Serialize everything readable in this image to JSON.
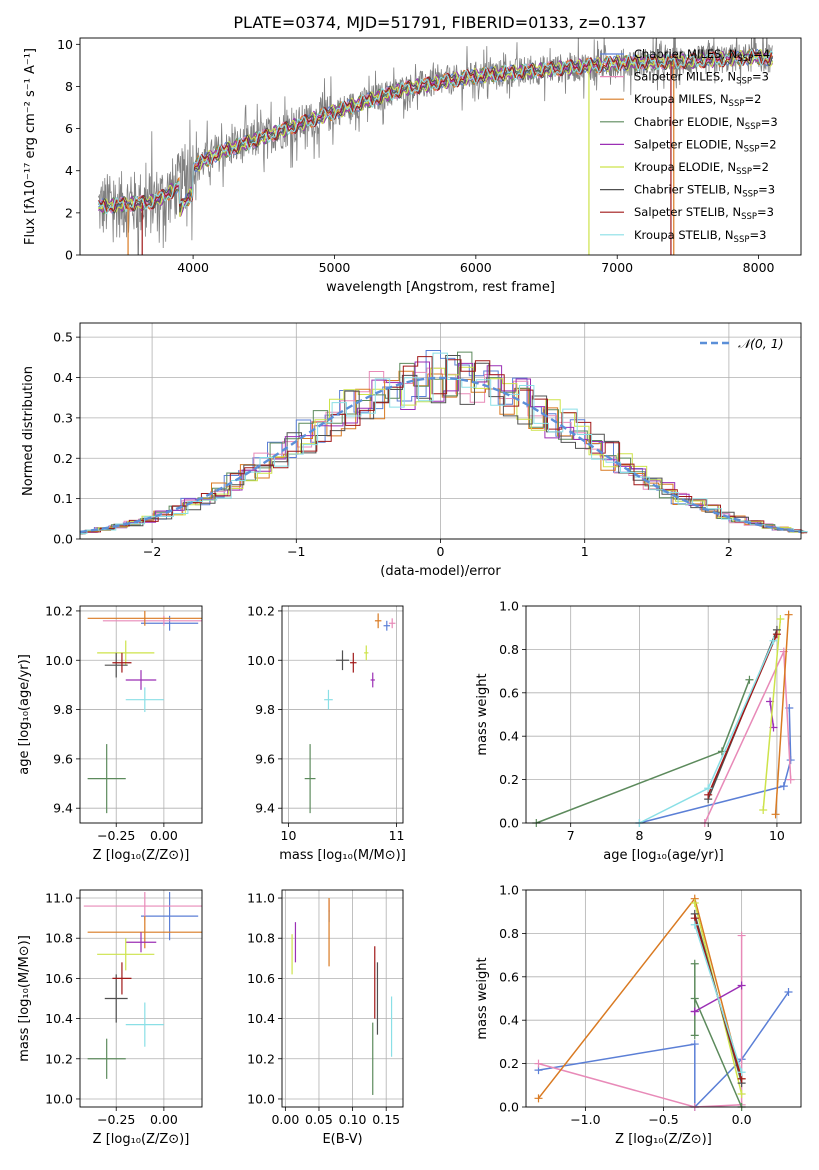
{
  "title": "PLATE=0374, MJD=51791, FIBERID=0133, z=0.137",
  "colors": {
    "Chabrier MILES": "#5b7fd6",
    "Salpeter MILES": "#e88ab8",
    "Kroupa MILES": "#d97a22",
    "Chabrier ELODIE": "#5c8a5c",
    "Salpeter ELODIE": "#9b2fb5",
    "Kroupa ELODIE": "#cde34a",
    "Chabrier STELIB": "#505050",
    "Salpeter STELIB": "#a01818",
    "Kroupa STELIB": "#8adfe6",
    "data": "#808080",
    "gaussian": "#5b8fd8"
  },
  "chart_data": [
    {
      "type": "line",
      "xlabel": "wavelength [Angstrom, rest frame]",
      "ylabel": "Flux [fλ10⁻¹⁷ erg cm⁻² s⁻¹ A⁻¹]",
      "xlim": [
        3200,
        8300
      ],
      "ylim": [
        0,
        10.3
      ],
      "xticks": [
        4000,
        5000,
        6000,
        7000,
        8000
      ],
      "yticks": [
        0,
        2,
        4,
        6,
        8,
        10
      ],
      "legend_position": "top-right",
      "legend": [
        {
          "name": "Chabrier MILES",
          "label": "Chabrier MILES, N",
          "sub": "SSP",
          "n": "=4"
        },
        {
          "name": "Salpeter MILES",
          "label": "Salpeter MILES, N",
          "sub": "SSP",
          "n": "=3"
        },
        {
          "name": "Kroupa MILES",
          "label": "Kroupa MILES, N",
          "sub": "SSP",
          "n": "=2"
        },
        {
          "name": "Chabrier ELODIE",
          "label": "Chabrier ELODIE, N",
          "sub": "SSP",
          "n": "=3"
        },
        {
          "name": "Salpeter ELODIE",
          "label": "Salpeter ELODIE, N",
          "sub": "SSP",
          "n": "=2"
        },
        {
          "name": "Kroupa ELODIE",
          "label": "Kroupa ELODIE, N",
          "sub": "SSP",
          "n": "=2"
        },
        {
          "name": "Chabrier STELIB",
          "label": "Chabrier STELIB, N",
          "sub": "SSP",
          "n": "=3"
        },
        {
          "name": "Salpeter STELIB",
          "label": "Salpeter STELIB, N",
          "sub": "SSP",
          "n": "=3"
        },
        {
          "name": "Kroupa STELIB",
          "label": "Kroupa STELIB, N",
          "sub": "SSP",
          "n": "=3"
        }
      ],
      "continuum": {
        "x": [
          3350,
          3500,
          3700,
          3800,
          3900,
          4000,
          4200,
          4500,
          5000,
          5500,
          6000,
          6500,
          7000,
          7500,
          8000,
          8100
        ],
        "y": [
          2.3,
          2.4,
          2.5,
          2.8,
          3.3,
          4.2,
          4.9,
          5.6,
          6.8,
          7.9,
          8.5,
          8.8,
          9.1,
          9.2,
          9.4,
          9.3
        ]
      },
      "data_range": [
        3330,
        8100
      ]
    },
    {
      "type": "histogram",
      "xlabel": "(data-model)/error",
      "ylabel": "Normed distribution",
      "xlim": [
        -2.5,
        2.5
      ],
      "ylim": [
        0,
        0.535
      ],
      "xticks": [
        -2,
        -1,
        0,
        1,
        2
      ],
      "yticks": [
        0.0,
        0.1,
        0.2,
        0.3,
        0.4,
        0.5
      ],
      "bin_width": 0.1,
      "legend": "𝒩(0, 1)",
      "legend_position": "top-right",
      "gaussian": {
        "mean": 0,
        "sigma": 1
      }
    },
    {
      "type": "scatter",
      "xlabel": "Z [log₁₀(Z/Z⊙)]",
      "ylabel": "age  [log₁₀(age/yr)]",
      "xlim": [
        -0.44,
        0.2
      ],
      "ylim": [
        9.34,
        10.22
      ],
      "xticks": [
        -0.25,
        0.0
      ],
      "xticklabels": [
        "−0.25",
        "0.00"
      ],
      "yticks": [
        9.4,
        9.6,
        9.8,
        10.0,
        10.2
      ],
      "points": [
        {
          "s": "Chabrier MILES",
          "x": 0.03,
          "y": 10.15,
          "xe": 0.15,
          "ye": 0.03
        },
        {
          "s": "Salpeter MILES",
          "x": 0.0,
          "y": 10.16,
          "xe": 0.32,
          "ye": 0.02
        },
        {
          "s": "Kroupa MILES",
          "x": -0.1,
          "y": 10.17,
          "xe": 0.3,
          "ye": 0.03
        },
        {
          "s": "Chabrier ELODIE",
          "x": -0.3,
          "y": 9.52,
          "xe": 0.1,
          "ye": 0.14
        },
        {
          "s": "Salpeter ELODIE",
          "x": -0.12,
          "y": 9.92,
          "xe": 0.08,
          "ye": 0.04
        },
        {
          "s": "Kroupa ELODIE",
          "x": -0.2,
          "y": 10.03,
          "xe": 0.15,
          "ye": 0.05
        },
        {
          "s": "Chabrier STELIB",
          "x": -0.25,
          "y": 9.98,
          "xe": 0.06,
          "ye": 0.05
        },
        {
          "s": "Salpeter STELIB",
          "x": -0.22,
          "y": 9.99,
          "xe": 0.05,
          "ye": 0.04
        },
        {
          "s": "Kroupa STELIB",
          "x": -0.1,
          "y": 9.84,
          "xe": 0.1,
          "ye": 0.05
        }
      ]
    },
    {
      "type": "scatter",
      "xlabel": "mass [log₁₀(M/M⊙)]",
      "ylabel": "",
      "xlim": [
        9.94,
        11.06
      ],
      "ylim": [
        9.34,
        10.22
      ],
      "xticks": [
        10,
        11
      ],
      "xticklabels": [
        "10",
        "11"
      ],
      "yticks": [
        9.4,
        9.6,
        9.8,
        10.0,
        10.2
      ],
      "points": [
        {
          "s": "Chabrier MILES",
          "x": 10.91,
          "y": 10.14,
          "xe": 0.03,
          "ye": 0.02
        },
        {
          "s": "Salpeter MILES",
          "x": 10.96,
          "y": 10.15,
          "xe": 0.03,
          "ye": 0.02
        },
        {
          "s": "Kroupa MILES",
          "x": 10.83,
          "y": 10.16,
          "xe": 0.03,
          "ye": 0.03
        },
        {
          "s": "Chabrier ELODIE",
          "x": 10.2,
          "y": 9.52,
          "xe": 0.05,
          "ye": 0.14
        },
        {
          "s": "Salpeter ELODIE",
          "x": 10.78,
          "y": 9.92,
          "xe": 0.02,
          "ye": 0.03
        },
        {
          "s": "Kroupa ELODIE",
          "x": 10.72,
          "y": 10.03,
          "xe": 0.02,
          "ye": 0.03
        },
        {
          "s": "Chabrier STELIB",
          "x": 10.5,
          "y": 10.0,
          "xe": 0.06,
          "ye": 0.04
        },
        {
          "s": "Salpeter STELIB",
          "x": 10.6,
          "y": 9.99,
          "xe": 0.03,
          "ye": 0.04
        },
        {
          "s": "Kroupa STELIB",
          "x": 10.37,
          "y": 9.84,
          "xe": 0.04,
          "ye": 0.04
        }
      ]
    },
    {
      "type": "line",
      "xlabel": "age  [log₁₀(age/yr)]",
      "ylabel": "mass weight",
      "xlim": [
        6.35,
        10.35
      ],
      "ylim": [
        0,
        1.0
      ],
      "xticks": [
        7,
        8,
        9,
        10
      ],
      "yticks": [
        0.0,
        0.2,
        0.4,
        0.6,
        0.8,
        1.0
      ],
      "series": [
        {
          "s": "Chabrier MILES",
          "x": [
            8.0,
            10.1,
            10.2,
            10.18
          ],
          "y": [
            0.0,
            0.17,
            0.29,
            0.53
          ]
        },
        {
          "s": "Salpeter MILES",
          "x": [
            8.95,
            10.1,
            10.2
          ],
          "y": [
            0.0,
            0.79,
            0.2
          ]
        },
        {
          "s": "Kroupa MILES",
          "x": [
            9.98,
            10.17
          ],
          "y": [
            0.04,
            0.96
          ]
        },
        {
          "s": "Chabrier ELODIE",
          "x": [
            6.5,
            9.2,
            9.6
          ],
          "y": [
            0.0,
            0.33,
            0.66
          ]
        },
        {
          "s": "Salpeter ELODIE",
          "x": [
            9.9,
            9.95
          ],
          "y": [
            0.56,
            0.44
          ]
        },
        {
          "s": "Kroupa ELODIE",
          "x": [
            9.8,
            10.05
          ],
          "y": [
            0.06,
            0.94
          ]
        },
        {
          "s": "Chabrier STELIB",
          "x": [
            9.0,
            10.0
          ],
          "y": [
            0.11,
            0.89
          ]
        },
        {
          "s": "Salpeter STELIB",
          "x": [
            9.0,
            10.0
          ],
          "y": [
            0.13,
            0.87
          ]
        },
        {
          "s": "Kroupa STELIB",
          "x": [
            8.0,
            9.0,
            9.95
          ],
          "y": [
            0.0,
            0.16,
            0.84
          ]
        }
      ]
    },
    {
      "type": "scatter",
      "xlabel": "Z [log₁₀(Z/Z⊙)]",
      "ylabel": "mass [log₁₀(M/M⊙)]",
      "xlim": [
        -0.44,
        0.2
      ],
      "ylim": [
        9.96,
        11.04
      ],
      "xticks": [
        -0.25,
        0.0
      ],
      "xticklabels": [
        "−0.25",
        "0.00"
      ],
      "yticks": [
        10.0,
        10.2,
        10.4,
        10.6,
        10.8,
        11.0
      ],
      "points": [
        {
          "s": "Chabrier MILES",
          "x": 0.03,
          "y": 10.91,
          "xe": 0.15,
          "ye": 0.12
        },
        {
          "s": "Salpeter MILES",
          "x": -0.1,
          "y": 10.96,
          "xe": 0.32,
          "ye": 0.07
        },
        {
          "s": "Kroupa MILES",
          "x": -0.1,
          "y": 10.83,
          "xe": 0.3,
          "ye": 0.08
        },
        {
          "s": "Chabrier ELODIE",
          "x": -0.3,
          "y": 10.2,
          "xe": 0.1,
          "ye": 0.1
        },
        {
          "s": "Salpeter ELODIE",
          "x": -0.12,
          "y": 10.78,
          "xe": 0.08,
          "ye": 0.05
        },
        {
          "s": "Kroupa ELODIE",
          "x": -0.2,
          "y": 10.72,
          "xe": 0.15,
          "ye": 0.08
        },
        {
          "s": "Chabrier STELIB",
          "x": -0.25,
          "y": 10.5,
          "xe": 0.06,
          "ye": 0.12
        },
        {
          "s": "Salpeter STELIB",
          "x": -0.22,
          "y": 10.6,
          "xe": 0.05,
          "ye": 0.08
        },
        {
          "s": "Kroupa STELIB",
          "x": -0.1,
          "y": 10.37,
          "xe": 0.1,
          "ye": 0.11
        }
      ]
    },
    {
      "type": "scatter",
      "xlabel": "E(B-V)",
      "ylabel": "",
      "xlim": [
        -0.005,
        0.175
      ],
      "ylim": [
        9.96,
        11.04
      ],
      "xticks": [
        0.0,
        0.05,
        0.1,
        0.15
      ],
      "xticklabels": [
        "0.00",
        "0.05",
        "0.10",
        "0.15"
      ],
      "yticks": [
        10.0,
        10.2,
        10.4,
        10.6,
        10.8,
        11.0
      ],
      "points": [
        {
          "s": "Chabrier MILES",
          "x": 0.065,
          "y": 10.91,
          "xe": 0.0,
          "ye": 0.03
        },
        {
          "s": "Salpeter MILES",
          "x": 0.065,
          "y": 10.96,
          "xe": 0.0,
          "ye": 0.03
        },
        {
          "s": "Kroupa MILES",
          "x": 0.065,
          "y": 10.83,
          "xe": 0.0,
          "ye": 0.17
        },
        {
          "s": "Chabrier ELODIE",
          "x": 0.13,
          "y": 10.2,
          "xe": 0.0,
          "ye": 0.18
        },
        {
          "s": "Salpeter ELODIE",
          "x": 0.015,
          "y": 10.78,
          "xe": 0.0,
          "ye": 0.1
        },
        {
          "s": "Kroupa ELODIE",
          "x": 0.01,
          "y": 10.72,
          "xe": 0.0,
          "ye": 0.1
        },
        {
          "s": "Chabrier STELIB",
          "x": 0.137,
          "y": 10.5,
          "xe": 0.0,
          "ye": 0.18
        },
        {
          "s": "Salpeter STELIB",
          "x": 0.133,
          "y": 10.58,
          "xe": 0.0,
          "ye": 0.18
        },
        {
          "s": "Kroupa STELIB",
          "x": 0.158,
          "y": 10.36,
          "xe": 0.0,
          "ye": 0.15
        }
      ]
    },
    {
      "type": "line",
      "xlabel": "Z [log₁₀(Z/Z⊙)]",
      "ylabel": "mass weight",
      "xlim": [
        -1.38,
        0.38
      ],
      "ylim": [
        0,
        1.0
      ],
      "xticks": [
        -1.0,
        -0.5,
        0.0
      ],
      "xticklabels": [
        "−1.0",
        "−0.5",
        "0.0"
      ],
      "yticks": [
        0.0,
        0.2,
        0.4,
        0.6,
        0.8,
        1.0
      ],
      "series": [
        {
          "s": "Chabrier MILES",
          "x": [
            -1.3,
            -0.3,
            -0.3,
            0.0,
            0.3
          ],
          "y": [
            0.17,
            0.29,
            0.0,
            0.22,
            0.53
          ]
        },
        {
          "s": "Salpeter MILES",
          "x": [
            -1.3,
            -0.3,
            0.0,
            0.0
          ],
          "y": [
            0.2,
            0.0,
            0.01,
            0.79
          ]
        },
        {
          "s": "Kroupa MILES",
          "x": [
            -1.3,
            -0.3,
            0.0
          ],
          "y": [
            0.04,
            0.96,
            0.13
          ]
        },
        {
          "s": "Chabrier ELODIE",
          "x": [
            -0.3,
            -0.3,
            -0.3,
            0.0
          ],
          "y": [
            0.66,
            0.33,
            0.5,
            0.0
          ]
        },
        {
          "s": "Salpeter ELODIE",
          "x": [
            -0.3,
            0.0,
            -0.3
          ],
          "y": [
            0.44,
            0.56,
            0.44
          ]
        },
        {
          "s": "Kroupa ELODIE",
          "x": [
            -0.3,
            0.0
          ],
          "y": [
            0.94,
            0.06
          ]
        },
        {
          "s": "Chabrier STELIB",
          "x": [
            -0.3,
            0.0
          ],
          "y": [
            0.89,
            0.11
          ]
        },
        {
          "s": "Salpeter STELIB",
          "x": [
            -0.3,
            0.0
          ],
          "y": [
            0.87,
            0.13
          ]
        },
        {
          "s": "Kroupa STELIB",
          "x": [
            -0.3,
            0.0
          ],
          "y": [
            0.84,
            0.16
          ]
        }
      ]
    }
  ]
}
